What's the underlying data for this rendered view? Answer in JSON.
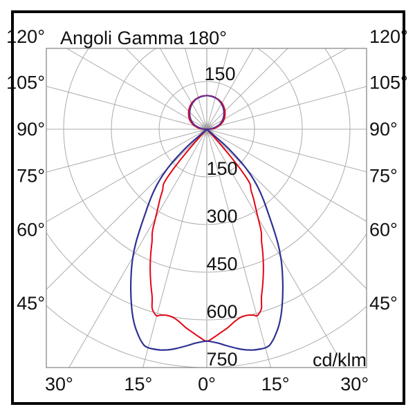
{
  "title": "Angoli Gamma",
  "unit_label": "cd/klm",
  "angle_labels": {
    "top": "180°",
    "left": [
      "120°",
      "105°",
      "90°",
      "75°",
      "60°",
      "45°"
    ],
    "right": [
      "120°",
      "105°",
      "90°",
      "75°",
      "60°",
      "45°"
    ],
    "bottom": [
      "30°",
      "15°",
      "0°",
      "15°",
      "30°"
    ]
  },
  "radial_tick_labels": {
    "above_center": "150",
    "below_center": [
      "150",
      "300",
      "450",
      "600",
      "750"
    ]
  },
  "colors": {
    "blue_curve": "#2e3192",
    "red_curve": "#e30613",
    "upper_lobe": "#662d91",
    "grid": "#ababab",
    "axis": "#c9c9c9",
    "frame": "#8a8a8a",
    "border": "#000000",
    "background": "#ffffff",
    "origin_smudge": "#8f8f8f"
  },
  "chart_data": {
    "type": "polar",
    "title": "Angoli Gamma",
    "units": "cd/klm",
    "gamma_zero_direction": "down",
    "angular_grid_step_deg": 15,
    "radial_gridlines": [
      150,
      300,
      450,
      600,
      750
    ],
    "radial_max": 750,
    "symmetry": "mirrored about vertical axis",
    "series": [
      {
        "name": "blue_curve",
        "color": "#2e3192",
        "lower_lobe_gamma_cd": [
          [
            0,
            667
          ],
          [
            3,
            674
          ],
          [
            5,
            683
          ],
          [
            8,
            697
          ],
          [
            10,
            705
          ],
          [
            12,
            710
          ],
          [
            14,
            712
          ],
          [
            15,
            712
          ],
          [
            16,
            709
          ],
          [
            17,
            700
          ],
          [
            18,
            688
          ],
          [
            20,
            660
          ],
          [
            22,
            625
          ],
          [
            24,
            585
          ],
          [
            26,
            545
          ],
          [
            28,
            505
          ],
          [
            30,
            465
          ],
          [
            32,
            420
          ],
          [
            34,
            372
          ],
          [
            36,
            330
          ],
          [
            38,
            296
          ],
          [
            40,
            264
          ],
          [
            42,
            232
          ],
          [
            44,
            196
          ],
          [
            46,
            152
          ],
          [
            48,
            96
          ],
          [
            49,
            55
          ],
          [
            50,
            0
          ]
        ],
        "upper_lobe_gamma_cd": [
          [
            90,
            0
          ],
          [
            95,
            12
          ],
          [
            100,
            23
          ],
          [
            110,
            42
          ],
          [
            120,
            57
          ],
          [
            130,
            70
          ],
          [
            140,
            82
          ],
          [
            150,
            92
          ],
          [
            160,
            100
          ],
          [
            170,
            104
          ],
          [
            180,
            106
          ]
        ]
      },
      {
        "name": "red_curve",
        "color": "#e30613",
        "lower_lobe_gamma_cd": [
          [
            0,
            667
          ],
          [
            2,
            655
          ],
          [
            4,
            641
          ],
          [
            6,
            628
          ],
          [
            8,
            613
          ],
          [
            10,
            602
          ],
          [
            12,
            599
          ],
          [
            14,
            603
          ],
          [
            15,
            608
          ],
          [
            16,
            601
          ],
          [
            17,
            588
          ],
          [
            18,
            556
          ],
          [
            20,
            515
          ],
          [
            22,
            475
          ],
          [
            24,
            434
          ],
          [
            26,
            393
          ],
          [
            28,
            364
          ],
          [
            30,
            322
          ],
          [
            32,
            289
          ],
          [
            34,
            262
          ],
          [
            36,
            236
          ],
          [
            38,
            222
          ],
          [
            39,
            205
          ],
          [
            40,
            165
          ],
          [
            41,
            112
          ],
          [
            42,
            58
          ],
          [
            42.8,
            0
          ]
        ],
        "upper_lobe_gamma_cd": [
          [
            90,
            0
          ],
          [
            94,
            16
          ],
          [
            100,
            30
          ],
          [
            110,
            48
          ],
          [
            120,
            63
          ],
          [
            130,
            75
          ],
          [
            140,
            86
          ],
          [
            150,
            95
          ],
          [
            160,
            101
          ],
          [
            170,
            105
          ],
          [
            180,
            106
          ]
        ]
      }
    ]
  }
}
